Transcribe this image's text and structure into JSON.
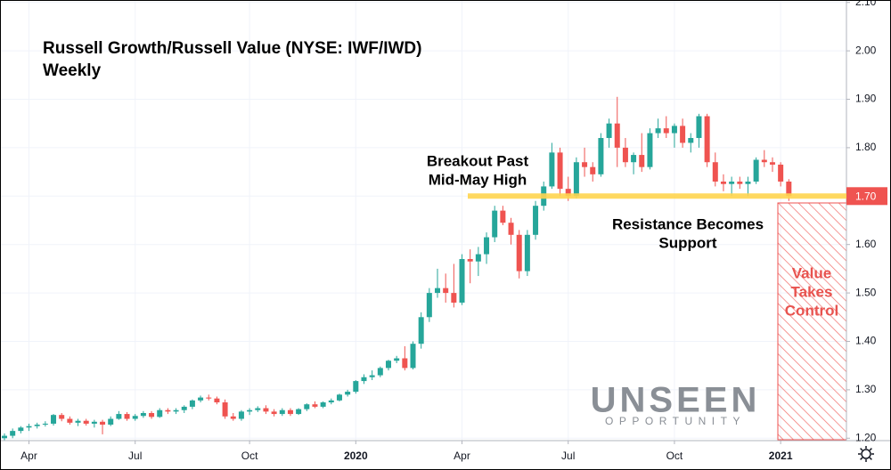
{
  "chart_data": {
    "type": "candlestick",
    "title": "Russell Growth/Russell Value (NYSE: IWF/IWD)",
    "subtitle": "Weekly",
    "categories": [
      null,
      null,
      null,
      "Apr",
      null,
      null,
      null,
      null,
      null,
      null,
      null,
      null,
      null,
      null,
      null,
      null,
      "Jul",
      null,
      null,
      null,
      null,
      null,
      null,
      null,
      null,
      null,
      null,
      null,
      null,
      null,
      "Oct",
      null,
      null,
      null,
      null,
      null,
      null,
      null,
      null,
      null,
      null,
      null,
      null,
      "2020",
      null,
      null,
      null,
      null,
      null,
      null,
      null,
      null,
      null,
      null,
      null,
      null,
      "Apr",
      null,
      null,
      null,
      null,
      null,
      null,
      null,
      null,
      null,
      null,
      null,
      null,
      "Jul",
      null,
      null,
      null,
      null,
      null,
      null,
      null,
      null,
      null,
      null,
      null,
      null,
      "Oct",
      null,
      null,
      null,
      null,
      null,
      null,
      null,
      null,
      null,
      null,
      null,
      null,
      "2021",
      null
    ],
    "open": [
      1.2,
      1.205,
      1.215,
      1.222,
      1.225,
      1.228,
      1.23,
      1.248,
      1.24,
      1.232,
      1.236,
      1.23,
      1.234,
      1.228,
      1.24,
      1.25,
      1.24,
      1.246,
      1.252,
      1.244,
      1.258,
      1.255,
      1.258,
      1.265,
      1.278,
      1.284,
      1.282,
      1.274,
      1.245,
      1.24,
      1.255,
      1.258,
      1.262,
      1.255,
      1.25,
      1.258,
      1.25,
      1.26,
      1.27,
      1.265,
      1.274,
      1.278,
      1.29,
      1.296,
      1.318,
      1.326,
      1.33,
      1.345,
      1.36,
      1.365,
      1.345,
      1.395,
      1.45,
      1.5,
      1.51,
      1.5,
      1.48,
      1.57,
      1.565,
      1.58,
      1.615,
      1.67,
      1.645,
      1.62,
      1.545,
      1.62,
      1.68,
      1.72,
      1.79,
      1.715,
      1.7,
      1.77,
      1.76,
      1.745,
      1.82,
      1.85,
      1.8,
      1.77,
      1.785,
      1.76,
      1.83,
      1.84,
      1.83,
      1.845,
      1.81,
      1.82,
      1.865,
      1.77,
      1.73,
      1.725,
      1.73,
      1.725,
      1.73,
      1.775,
      1.77,
      1.765,
      1.73
    ],
    "high": [
      1.21,
      1.22,
      1.225,
      1.23,
      1.232,
      1.235,
      1.25,
      1.252,
      1.245,
      1.24,
      1.24,
      1.238,
      1.238,
      1.245,
      1.256,
      1.254,
      1.25,
      1.256,
      1.256,
      1.262,
      1.262,
      1.262,
      1.268,
      1.28,
      1.288,
      1.29,
      1.286,
      1.28,
      1.252,
      1.258,
      1.262,
      1.266,
      1.268,
      1.26,
      1.262,
      1.262,
      1.262,
      1.272,
      1.276,
      1.276,
      1.282,
      1.292,
      1.3,
      1.32,
      1.332,
      1.34,
      1.348,
      1.362,
      1.37,
      1.39,
      1.4,
      1.46,
      1.51,
      1.55,
      1.54,
      1.56,
      1.58,
      1.59,
      1.595,
      1.625,
      1.68,
      1.68,
      1.655,
      1.63,
      1.63,
      1.69,
      1.73,
      1.81,
      1.8,
      1.74,
      1.78,
      1.8,
      1.77,
      1.83,
      1.86,
      1.905,
      1.82,
      1.79,
      1.83,
      1.84,
      1.86,
      1.865,
      1.85,
      1.86,
      1.83,
      1.87,
      1.87,
      1.79,
      1.745,
      1.74,
      1.74,
      1.74,
      1.78,
      1.795,
      1.78,
      1.77,
      1.735
    ],
    "low": [
      1.195,
      1.2,
      1.21,
      1.215,
      1.22,
      1.224,
      1.226,
      1.235,
      1.228,
      1.225,
      1.226,
      1.222,
      1.208,
      1.225,
      1.238,
      1.236,
      1.236,
      1.242,
      1.24,
      1.242,
      1.25,
      1.25,
      1.252,
      1.26,
      1.274,
      1.278,
      1.27,
      1.24,
      1.236,
      1.236,
      1.248,
      1.254,
      1.25,
      1.245,
      1.246,
      1.246,
      1.248,
      1.256,
      1.262,
      1.262,
      1.27,
      1.276,
      1.286,
      1.292,
      1.312,
      1.32,
      1.326,
      1.34,
      1.355,
      1.34,
      1.342,
      1.385,
      1.44,
      1.49,
      1.48,
      1.47,
      1.475,
      1.52,
      1.535,
      1.56,
      1.605,
      1.64,
      1.6,
      1.53,
      1.535,
      1.61,
      1.67,
      1.715,
      1.7,
      1.69,
      1.695,
      1.74,
      1.73,
      1.74,
      1.8,
      1.76,
      1.76,
      1.745,
      1.75,
      1.755,
      1.82,
      1.82,
      1.8,
      1.8,
      1.79,
      1.8,
      1.76,
      1.72,
      1.71,
      1.7,
      1.715,
      1.7,
      1.725,
      1.76,
      1.75,
      1.72,
      1.69
    ],
    "close": [
      1.205,
      1.215,
      1.222,
      1.225,
      1.228,
      1.23,
      1.248,
      1.24,
      1.232,
      1.236,
      1.23,
      1.234,
      1.228,
      1.24,
      1.25,
      1.24,
      1.246,
      1.252,
      1.244,
      1.258,
      1.255,
      1.258,
      1.265,
      1.278,
      1.284,
      1.282,
      1.274,
      1.245,
      1.24,
      1.255,
      1.258,
      1.262,
      1.255,
      1.25,
      1.258,
      1.25,
      1.26,
      1.27,
      1.265,
      1.274,
      1.278,
      1.29,
      1.296,
      1.318,
      1.326,
      1.33,
      1.345,
      1.36,
      1.365,
      1.345,
      1.395,
      1.45,
      1.5,
      1.51,
      1.5,
      1.48,
      1.57,
      1.565,
      1.58,
      1.615,
      1.67,
      1.645,
      1.62,
      1.545,
      1.62,
      1.68,
      1.72,
      1.79,
      1.715,
      1.7,
      1.77,
      1.76,
      1.745,
      1.82,
      1.85,
      1.8,
      1.77,
      1.785,
      1.76,
      1.83,
      1.84,
      1.83,
      1.845,
      1.81,
      1.82,
      1.865,
      1.77,
      1.73,
      1.725,
      1.73,
      1.725,
      1.73,
      1.775,
      1.77,
      1.765,
      1.73,
      1.7
    ],
    "up_color": "#26a69a",
    "down_color": "#ef5350",
    "ylim": [
      1.195,
      2.105
    ],
    "yticks": [
      {
        "value": 1.2,
        "label": "1.20"
      },
      {
        "value": 1.3,
        "label": "1.30"
      },
      {
        "value": 1.4,
        "label": "1.40"
      },
      {
        "value": 1.5,
        "label": "1.50"
      },
      {
        "value": 1.6,
        "label": "1.60"
      },
      {
        "value": 1.7,
        "label": "1.70"
      },
      {
        "value": 1.8,
        "label": "1.80"
      },
      {
        "value": 1.9,
        "label": "1.90"
      },
      {
        "value": 2.0,
        "label": "2.00"
      },
      {
        "value": 2.1,
        "label": "2.10"
      }
    ],
    "grid": true,
    "support_level": 1.7,
    "price_marker": {
      "value": 1.7,
      "label": "1.70"
    },
    "annotations": {
      "breakout": [
        "Breakout Past",
        "Mid-May High"
      ],
      "resistance": [
        "Resistance Becomes",
        "Support"
      ],
      "value": [
        "Value",
        "Takes",
        "Control"
      ]
    },
    "logo": {
      "name": "UNSEEN",
      "tagline": "OPPORTUNITY"
    }
  }
}
